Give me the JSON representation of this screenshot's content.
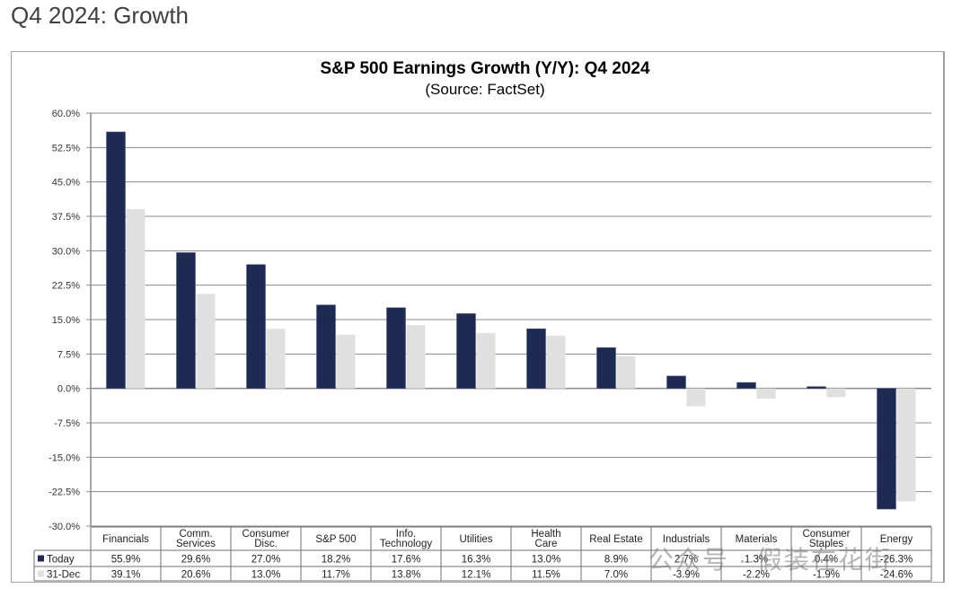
{
  "page": {
    "title": "Q4 2024: Growth",
    "watermark": "公众号 · 假装在花街"
  },
  "chart_data": {
    "type": "bar",
    "title": "S&P 500 Earnings Growth (Y/Y): Q4 2024",
    "subtitle": "(Source: FactSet)",
    "xlabel": "",
    "ylabel": "",
    "ylim": [
      -30,
      60
    ],
    "ytick_step": 7.5,
    "ytick_labels": [
      "60.0%",
      "52.5%",
      "45.0%",
      "37.5%",
      "30.0%",
      "22.5%",
      "15.0%",
      "7.5%",
      "0.0%",
      "-7.5%",
      "-15.0%",
      "-22.5%",
      "-30.0%"
    ],
    "grid": true,
    "legend": "table-below",
    "categories": [
      [
        "Financials"
      ],
      [
        "Comm.",
        "Services"
      ],
      [
        "Consumer",
        "Disc."
      ],
      [
        "S&P 500"
      ],
      [
        "Info.",
        "Technology"
      ],
      [
        "Utilities"
      ],
      [
        "Health",
        "Care"
      ],
      [
        "Real Estate"
      ],
      [
        "Industrials"
      ],
      [
        "Materials"
      ],
      [
        "Consumer",
        "Staples"
      ],
      [
        "Energy"
      ]
    ],
    "series": [
      {
        "name": "Today",
        "color": "#1f2a52",
        "values": [
          55.9,
          29.6,
          27.0,
          18.2,
          17.6,
          16.3,
          13.0,
          8.9,
          2.7,
          1.3,
          0.4,
          -26.3
        ],
        "labels": [
          "55.9%",
          "29.6%",
          "27.0%",
          "18.2%",
          "17.6%",
          "16.3%",
          "13.0%",
          "8.9%",
          "2.7%",
          "1.3%",
          "0.4%",
          "-26.3%"
        ]
      },
      {
        "name": "31-Dec",
        "color": "#e0e0e0",
        "values": [
          39.1,
          20.6,
          13.0,
          11.7,
          13.8,
          12.1,
          11.5,
          7.0,
          -3.9,
          -2.2,
          -1.9,
          -24.6
        ],
        "labels": [
          "39.1%",
          "20.6%",
          "13.0%",
          "11.7%",
          "13.8%",
          "12.1%",
          "11.5%",
          "7.0%",
          "-3.9%",
          "-2.2%",
          "-1.9%",
          "-24.6%"
        ]
      }
    ]
  }
}
